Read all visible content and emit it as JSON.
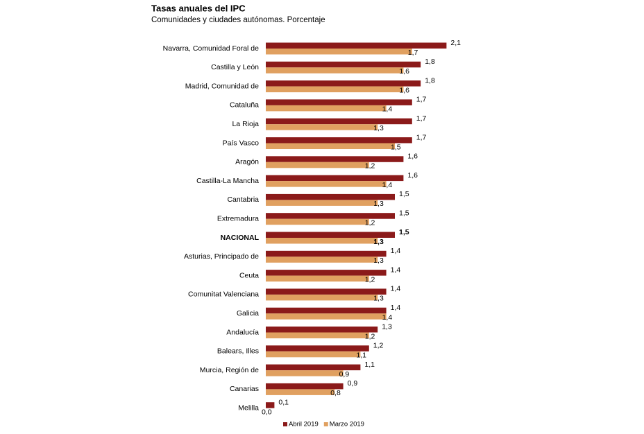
{
  "chart_data": {
    "type": "hbar",
    "title": "Tasas anuales del IPC",
    "subtitle": "Comunidades y ciudades autónomas. Porcentaje",
    "categories": [
      "Navarra, Comunidad Foral de",
      "Castilla y León",
      "Madrid, Comunidad de",
      "Cataluña",
      "La Rioja",
      "País Vasco",
      "Aragón",
      "Castilla-La Mancha",
      "Cantabria",
      "Extremadura",
      "NACIONAL",
      "Asturias, Principado de",
      "Ceuta",
      "Comunitat Valenciana",
      "Galicia",
      "Andalucía",
      "Balears, Illes",
      "Murcia, Región de",
      "Canarias",
      "Melilla"
    ],
    "series": [
      {
        "name": "Abril 2019",
        "color": "#8b1a1a",
        "values": [
          2.1,
          1.8,
          1.8,
          1.7,
          1.7,
          1.7,
          1.6,
          1.6,
          1.5,
          1.5,
          1.5,
          1.4,
          1.4,
          1.4,
          1.4,
          1.3,
          1.2,
          1.1,
          0.9,
          0.1
        ],
        "value_labels": [
          "2,1",
          "1,8",
          "1,8",
          "1,7",
          "1,7",
          "1,7",
          "1,6",
          "1,6",
          "1,5",
          "1,5",
          "1,5",
          "1,4",
          "1,4",
          "1,4",
          "1,4",
          "1,3",
          "1,2",
          "1,1",
          "0,9",
          "0,1"
        ]
      },
      {
        "name": "Marzo 2019",
        "color": "#e0a060",
        "values": [
          1.7,
          1.6,
          1.6,
          1.4,
          1.3,
          1.5,
          1.2,
          1.4,
          1.3,
          1.2,
          1.3,
          1.3,
          1.2,
          1.3,
          1.4,
          1.2,
          1.1,
          0.9,
          0.8,
          0.0
        ],
        "value_labels": [
          "1,7",
          "1,6",
          "1,6",
          "1,4",
          "1,3",
          "1,5",
          "1,2",
          "1,4",
          "1,3",
          "1,2",
          "1,3",
          "1,3",
          "1,2",
          "1,3",
          "1,4",
          "1,2",
          "1,1",
          "0,9",
          "0,8",
          "0,0"
        ]
      }
    ],
    "xlim": [
      0,
      2.5
    ],
    "highlight_index": 10,
    "legend": "bottom"
  }
}
